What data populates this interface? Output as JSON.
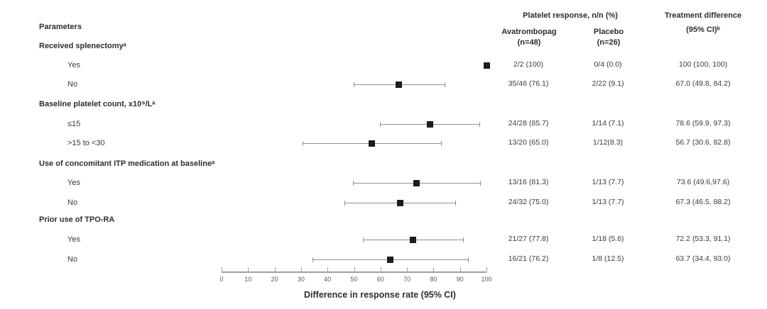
{
  "header": {
    "platelet_response": "Platelet response, n/n (%)",
    "col1_name": "Avatrombopag",
    "col1_n": "(n=48)",
    "col2_name": "Placebo",
    "col2_n": "(n=26)",
    "col3_name": "Treatment difference",
    "col3_ci": "(95% CI)ᵇ"
  },
  "left_column": {
    "header": "Parameters",
    "groups": [
      {
        "label": "Received splenectomyᵃ"
      },
      {
        "label": "Baseline platelet count, x10⁹/Lᵃ"
      },
      {
        "label": "Use of concomitant ITP medication at baselineᵃ"
      },
      {
        "label": "Prior use of TPO-RA"
      }
    ]
  },
  "rows": [
    {
      "label": "Yes",
      "avatrombopag": "2/2 (100)",
      "placebo": "0/4 (0.0)",
      "difference": "100 (100, 100)"
    },
    {
      "label": "No",
      "avatrombopag": "35/46 (76.1)",
      "placebo": "2/22 (9.1)",
      "difference": "67.0 (49.8, 84.2)"
    },
    {
      "label": "≤15",
      "avatrombopag": "24/28 (85.7)",
      "placebo": "1/14 (7.1)",
      "difference": "78.6 (59.9, 97.3)"
    },
    {
      "label": ">15 to <30",
      "avatrombopag": "13/20 (65.0)",
      "placebo": "1/12(8.3)",
      "difference": "56.7 (30.6, 82.8)"
    },
    {
      "label": "Yes",
      "avatrombopag": "13/16 (81.3)",
      "placebo": "1/13 (7.7)",
      "difference": "73.6 (49.6,97.6)"
    },
    {
      "label": "No",
      "avatrombopag": "24/32 (75.0)",
      "placebo": "1/13 (7.7)",
      "difference": "67.3 (46.5, 88.2)"
    },
    {
      "label": "Yes",
      "avatrombopag": "21/27 (77.8)",
      "placebo": "1/18 (5.6)",
      "difference": "72.2 (53.3, 91.1)"
    },
    {
      "label": "No",
      "avatrombopag": "16/21 (76.2)",
      "placebo": "1/8 (12.5)",
      "difference": "63.7 (34.4, 93.0)"
    }
  ],
  "axis": {
    "title": "Difference in response rate (95% CI)"
  },
  "chart_data": {
    "type": "scatter",
    "subtype": "forest-plot-horizontal-ci",
    "title": "",
    "xlabel": "Difference in response rate (95% CI)",
    "ylabel": "",
    "xlim": [
      0,
      100
    ],
    "x_ticks": [
      0,
      10,
      20,
      30,
      40,
      50,
      60,
      70,
      80,
      90,
      100
    ],
    "grid": false,
    "legend": false,
    "series": [
      {
        "group": "Received splenectomy",
        "label": "Yes",
        "estimate": 100,
        "ci_low": 100,
        "ci_high": 100
      },
      {
        "group": "Received splenectomy",
        "label": "No",
        "estimate": 67.0,
        "ci_low": 49.8,
        "ci_high": 84.2
      },
      {
        "group": "Baseline platelet count, x10⁹/L",
        "label": "≤15",
        "estimate": 78.6,
        "ci_low": 59.9,
        "ci_high": 97.3
      },
      {
        "group": "Baseline platelet count, x10⁹/L",
        "label": ">15 to <30",
        "estimate": 56.7,
        "ci_low": 30.6,
        "ci_high": 82.8
      },
      {
        "group": "Use of concomitant ITP medication at baseline",
        "label": "Yes",
        "estimate": 73.6,
        "ci_low": 49.6,
        "ci_high": 97.6
      },
      {
        "group": "Use of concomitant ITP medication at baseline",
        "label": "No",
        "estimate": 67.3,
        "ci_low": 46.5,
        "ci_high": 88.2
      },
      {
        "group": "Prior use of TPO-RA",
        "label": "Yes",
        "estimate": 72.2,
        "ci_low": 53.3,
        "ci_high": 91.1
      },
      {
        "group": "Prior use of TPO-RA",
        "label": "No",
        "estimate": 63.7,
        "ci_low": 34.4,
        "ci_high": 93.0
      }
    ],
    "style": {
      "marker_color": "#1c1c1c",
      "whisker_color": "#8f8f8f",
      "axis_color": "#a0a0a0",
      "tick_label_color": "#595959"
    }
  }
}
